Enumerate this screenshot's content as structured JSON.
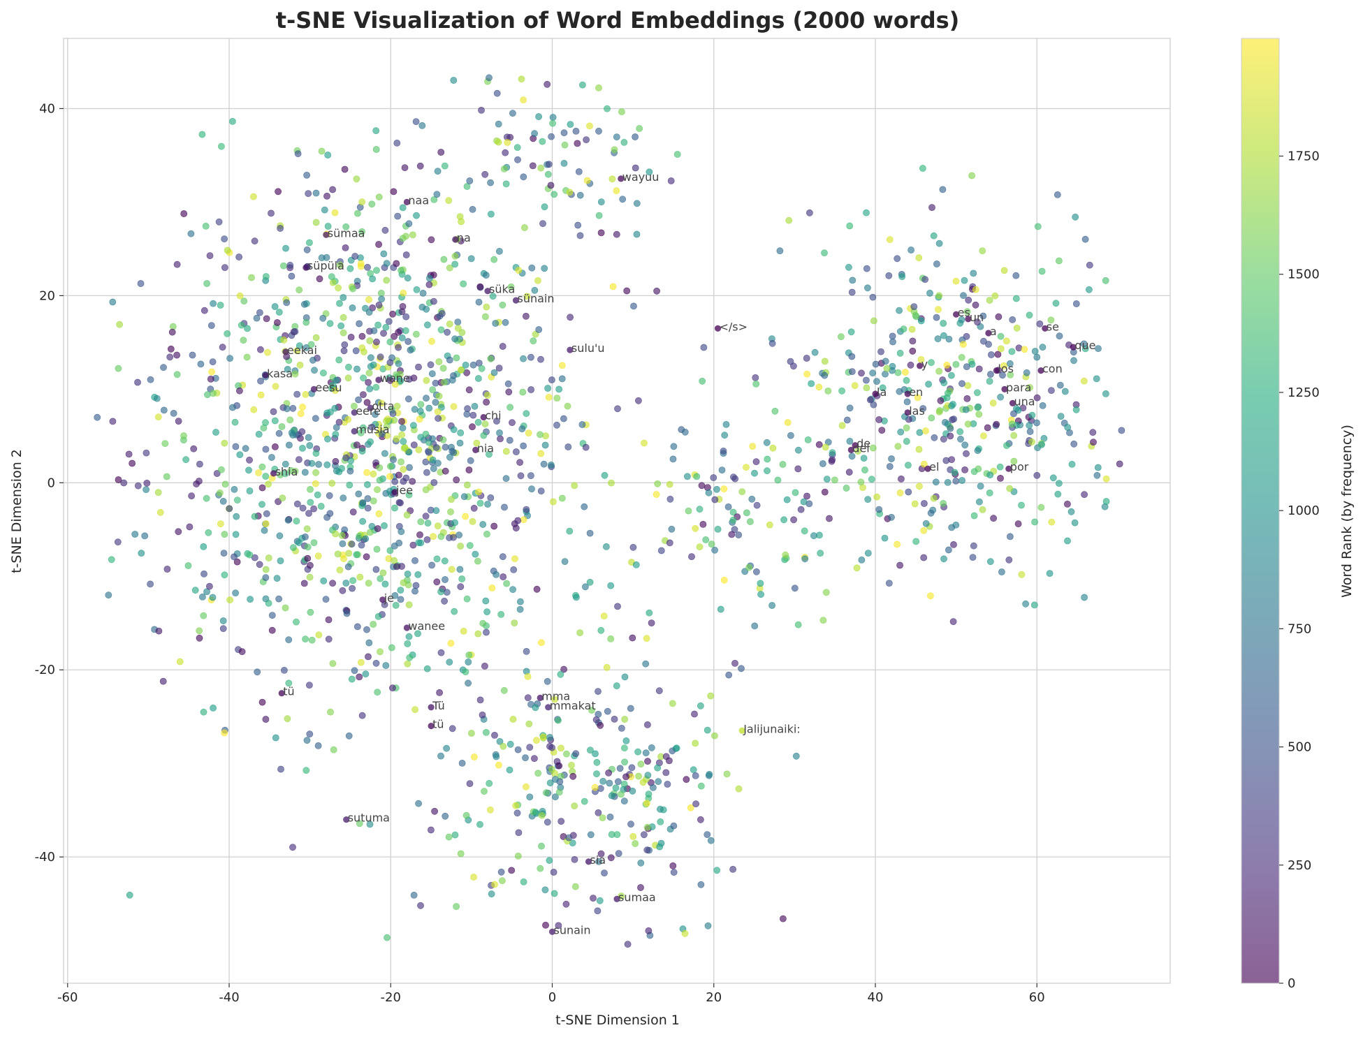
{
  "chart_data": {
    "type": "scatter",
    "title": "t-SNE Visualization of Word Embeddings (2000 words)",
    "xlabel": "t-SNE Dimension 1",
    "ylabel": "t-SNE Dimension 2",
    "xlim": [
      -60.5,
      76.5
    ],
    "ylim": [
      -53.5,
      47.5
    ],
    "xticks": [
      -60,
      -40,
      -20,
      0,
      20,
      40,
      60
    ],
    "yticks": [
      -40,
      -20,
      0,
      20,
      40
    ],
    "grid": true,
    "legend": "none",
    "colorbar": {
      "label": "Word Rank (by frequency)",
      "range": [
        0,
        1999
      ],
      "ticks": [
        0,
        250,
        500,
        750,
        1000,
        1250,
        1500,
        1750
      ],
      "colormap": "viridis",
      "alpha": 0.6
    },
    "n_points": 2000,
    "clusters": [
      {
        "name": "left",
        "cx": -22,
        "cy": 5,
        "sx": 14,
        "sy": 15,
        "share": 0.55
      },
      {
        "name": "bottom",
        "cx": 4,
        "cy": -33,
        "sx": 9,
        "sy": 7,
        "share": 0.13
      },
      {
        "name": "right",
        "cx": 50,
        "cy": 8,
        "sx": 10,
        "sy": 9,
        "share": 0.22
      },
      {
        "name": "bridge",
        "cx": 24,
        "cy": -3,
        "sx": 7,
        "sy": 6,
        "share": 0.07
      },
      {
        "name": "top",
        "cx": 2,
        "cy": 35,
        "sx": 7,
        "sy": 5,
        "share": 0.03
      }
    ],
    "annotations": [
      {
        "text": "wayuu",
        "x": 8.5,
        "y": 32.5,
        "rank": 40
      },
      {
        "text": "naa",
        "x": -18,
        "y": 30,
        "rank": 60
      },
      {
        "text": "sümaa",
        "x": -28,
        "y": 26.5,
        "rank": 150
      },
      {
        "text": "na",
        "x": -12,
        "y": 26,
        "rank": 70
      },
      {
        "text": "süpüla",
        "x": -30.5,
        "y": 23,
        "rank": 100
      },
      {
        "text": "süka",
        "x": -8,
        "y": 20.5,
        "rank": 120
      },
      {
        "text": "sünain",
        "x": -4.5,
        "y": 19.5,
        "rank": 130
      },
      {
        "text": "</s>",
        "x": 20.5,
        "y": 16.5,
        "rank": 1
      },
      {
        "text": "sulu'u",
        "x": 2.2,
        "y": 14.2,
        "rank": 140
      },
      {
        "text": "eekai",
        "x": -33,
        "y": 14,
        "rank": 90
      },
      {
        "text": "kasa",
        "x": -35.5,
        "y": 11.5,
        "rank": 80
      },
      {
        "text": "wane",
        "x": -21.5,
        "y": 11,
        "rank": 110
      },
      {
        "text": "eesu",
        "x": -29.5,
        "y": 10,
        "rank": 95
      },
      {
        "text": "otta",
        "x": -22.5,
        "y": 8,
        "rank": 160
      },
      {
        "text": "eere",
        "x": -24.5,
        "y": 7.5,
        "rank": 170
      },
      {
        "text": "chi",
        "x": -8.5,
        "y": 7,
        "rank": 50
      },
      {
        "text": "müsia",
        "x": -24.5,
        "y": 5.5,
        "rank": 180
      },
      {
        "text": "nia",
        "x": -9.5,
        "y": 3.5,
        "rank": 55
      },
      {
        "text": "shia",
        "x": -34.5,
        "y": 1,
        "rank": 65
      },
      {
        "text": "jee",
        "x": -19.5,
        "y": -1,
        "rank": 45
      },
      {
        "text": "je",
        "x": -21,
        "y": -12.5,
        "rank": 75
      },
      {
        "text": "wanee",
        "x": -18,
        "y": -15.5,
        "rank": 85
      },
      {
        "text": "tü",
        "x": -33.5,
        "y": -22.5,
        "rank": 30
      },
      {
        "text": "mma",
        "x": -1.5,
        "y": -23,
        "rank": 105
      },
      {
        "text": "Tü",
        "x": -15,
        "y": -24,
        "rank": 115
      },
      {
        "text": "mmakat",
        "x": -0.5,
        "y": -24,
        "rank": 190
      },
      {
        "text": "tü",
        "x": -15,
        "y": -26,
        "rank": 35
      },
      {
        "text": "Jalijunaiki:",
        "x": 23.5,
        "y": -26.5,
        "rank": 1800
      },
      {
        "text": "sutuma",
        "x": -25.5,
        "y": -36,
        "rank": 135
      },
      {
        "text": "sia",
        "x": 4.5,
        "y": -40.5,
        "rank": 125
      },
      {
        "text": "sumaa",
        "x": 8,
        "y": -44.5,
        "rank": 145
      },
      {
        "text": "sunain",
        "x": 0,
        "y": -48,
        "rank": 155
      },
      {
        "text": "es",
        "x": 50,
        "y": 18,
        "rank": 20
      },
      {
        "text": "un",
        "x": 51.5,
        "y": 17.5,
        "rank": 15
      },
      {
        "text": "se",
        "x": 61,
        "y": 16.5,
        "rank": 12
      },
      {
        "text": "a",
        "x": 54,
        "y": 16,
        "rank": 8
      },
      {
        "text": "que",
        "x": 64.5,
        "y": 14.5,
        "rank": 4
      },
      {
        "text": "y",
        "x": 45.5,
        "y": 12.5,
        "rank": 5
      },
      {
        "text": "los",
        "x": 55,
        "y": 12,
        "rank": 9
      },
      {
        "text": "con",
        "x": 60.5,
        "y": 12,
        "rank": 14
      },
      {
        "text": "para",
        "x": 56,
        "y": 10,
        "rank": 18
      },
      {
        "text": "la",
        "x": 40,
        "y": 9.5,
        "rank": 3
      },
      {
        "text": "en",
        "x": 44,
        "y": 9.5,
        "rank": 6
      },
      {
        "text": "una",
        "x": 57,
        "y": 8.5,
        "rank": 13
      },
      {
        "text": "las",
        "x": 44,
        "y": 7.5,
        "rank": 11
      },
      {
        "text": "de",
        "x": 37.5,
        "y": 4,
        "rank": 2
      },
      {
        "text": "del",
        "x": 37,
        "y": 3.5,
        "rank": 10
      },
      {
        "text": "el",
        "x": 46.5,
        "y": 1.5,
        "rank": 7
      },
      {
        "text": "por",
        "x": 56.5,
        "y": 1.5,
        "rank": 16
      }
    ]
  }
}
